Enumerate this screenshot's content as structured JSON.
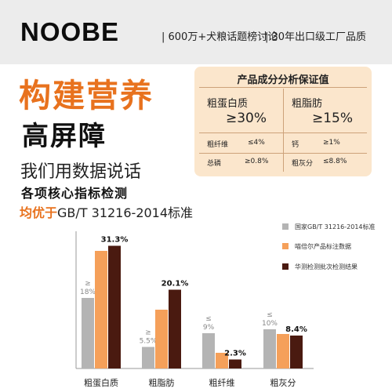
{
  "header": {
    "logo": "NOOBE",
    "tag1": "| 600万+犬粮话题榜讨论",
    "tag2": "| 30年出口级工厂品质"
  },
  "headline": {
    "line1": "构建营养",
    "line2": "高屏障",
    "line3": "我们用数据说话",
    "line4": "各项核心指标检测",
    "line5_highlight": "均优于",
    "line5_rest": "GB/T 31216-2014标准"
  },
  "guarantee": {
    "title": "产品成分分析保证值",
    "protein_label": "粗蛋白质",
    "protein_value": "≥30%",
    "fat_label": "粗脂肪",
    "fat_value": "≥15%",
    "fiber_label": "粗纤维",
    "fiber_value": "≤4%",
    "calcium_label": "钙",
    "calcium_value": "≥1%",
    "phosphorus_label": "总磷",
    "phosphorus_value": "≥0.8%",
    "ash_label": "粗灰分",
    "ash_value": "≤8.8%"
  },
  "chart_data": {
    "type": "bar",
    "categories": [
      "粗蛋白质",
      "粗脂肪",
      "粗纤维",
      "粗灰分"
    ],
    "series": [
      {
        "name": "国家GB/T 31216-2014标准",
        "values": [
          18,
          5.5,
          9,
          10
        ],
        "color": "#b4b4b4",
        "labels": [
          "≥\n18%",
          "≥\n5.5%",
          "≤\n9%",
          "≤\n10%"
        ]
      },
      {
        "name": "喵倍尔产品标注数据",
        "values": [
          30,
          15,
          4,
          8.8
        ],
        "color": "#f5a05a",
        "labels": [
          "",
          "",
          "",
          ""
        ]
      },
      {
        "name": "华测检测批次检测结果",
        "values": [
          31.3,
          20.1,
          2.3,
          8.4
        ],
        "color": "#4a1a10",
        "labels": [
          "31.3%",
          "20.1%",
          "2.3%",
          "8.4%"
        ]
      }
    ],
    "legend_position": "right",
    "grid": false
  }
}
